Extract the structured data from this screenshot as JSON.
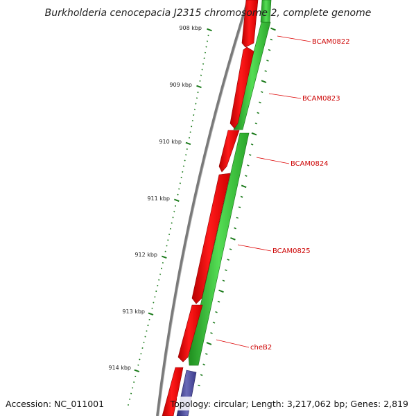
{
  "title": "Burkholderia cenocepacia J2315 chromosome 2, complete genome",
  "accession": "Accession: NC_011001",
  "topology": "Topology: circular; Length: 3,217,062 bp; Genes: 2,819",
  "kbp_ticks": [
    {
      "label": "908 kbp"
    },
    {
      "label": "909 kbp"
    },
    {
      "label": "910 kbp"
    },
    {
      "label": "911 kbp"
    },
    {
      "label": "912 kbp"
    },
    {
      "label": "913 kbp"
    },
    {
      "label": "914 kbp"
    }
  ],
  "gene_labels": [
    "BCAM0822",
    "BCAM0823",
    "BCAM0824",
    "BCAM0825",
    "cheB2"
  ],
  "colors": {
    "backbone": "#7a7a7a",
    "forward_cds": "#ff0000",
    "reverse_cds": "#33bb33",
    "other_feature": "#3b3a8a",
    "tick": "#1a7a1a",
    "label": "#cc0000",
    "leader": "#dd0000"
  }
}
